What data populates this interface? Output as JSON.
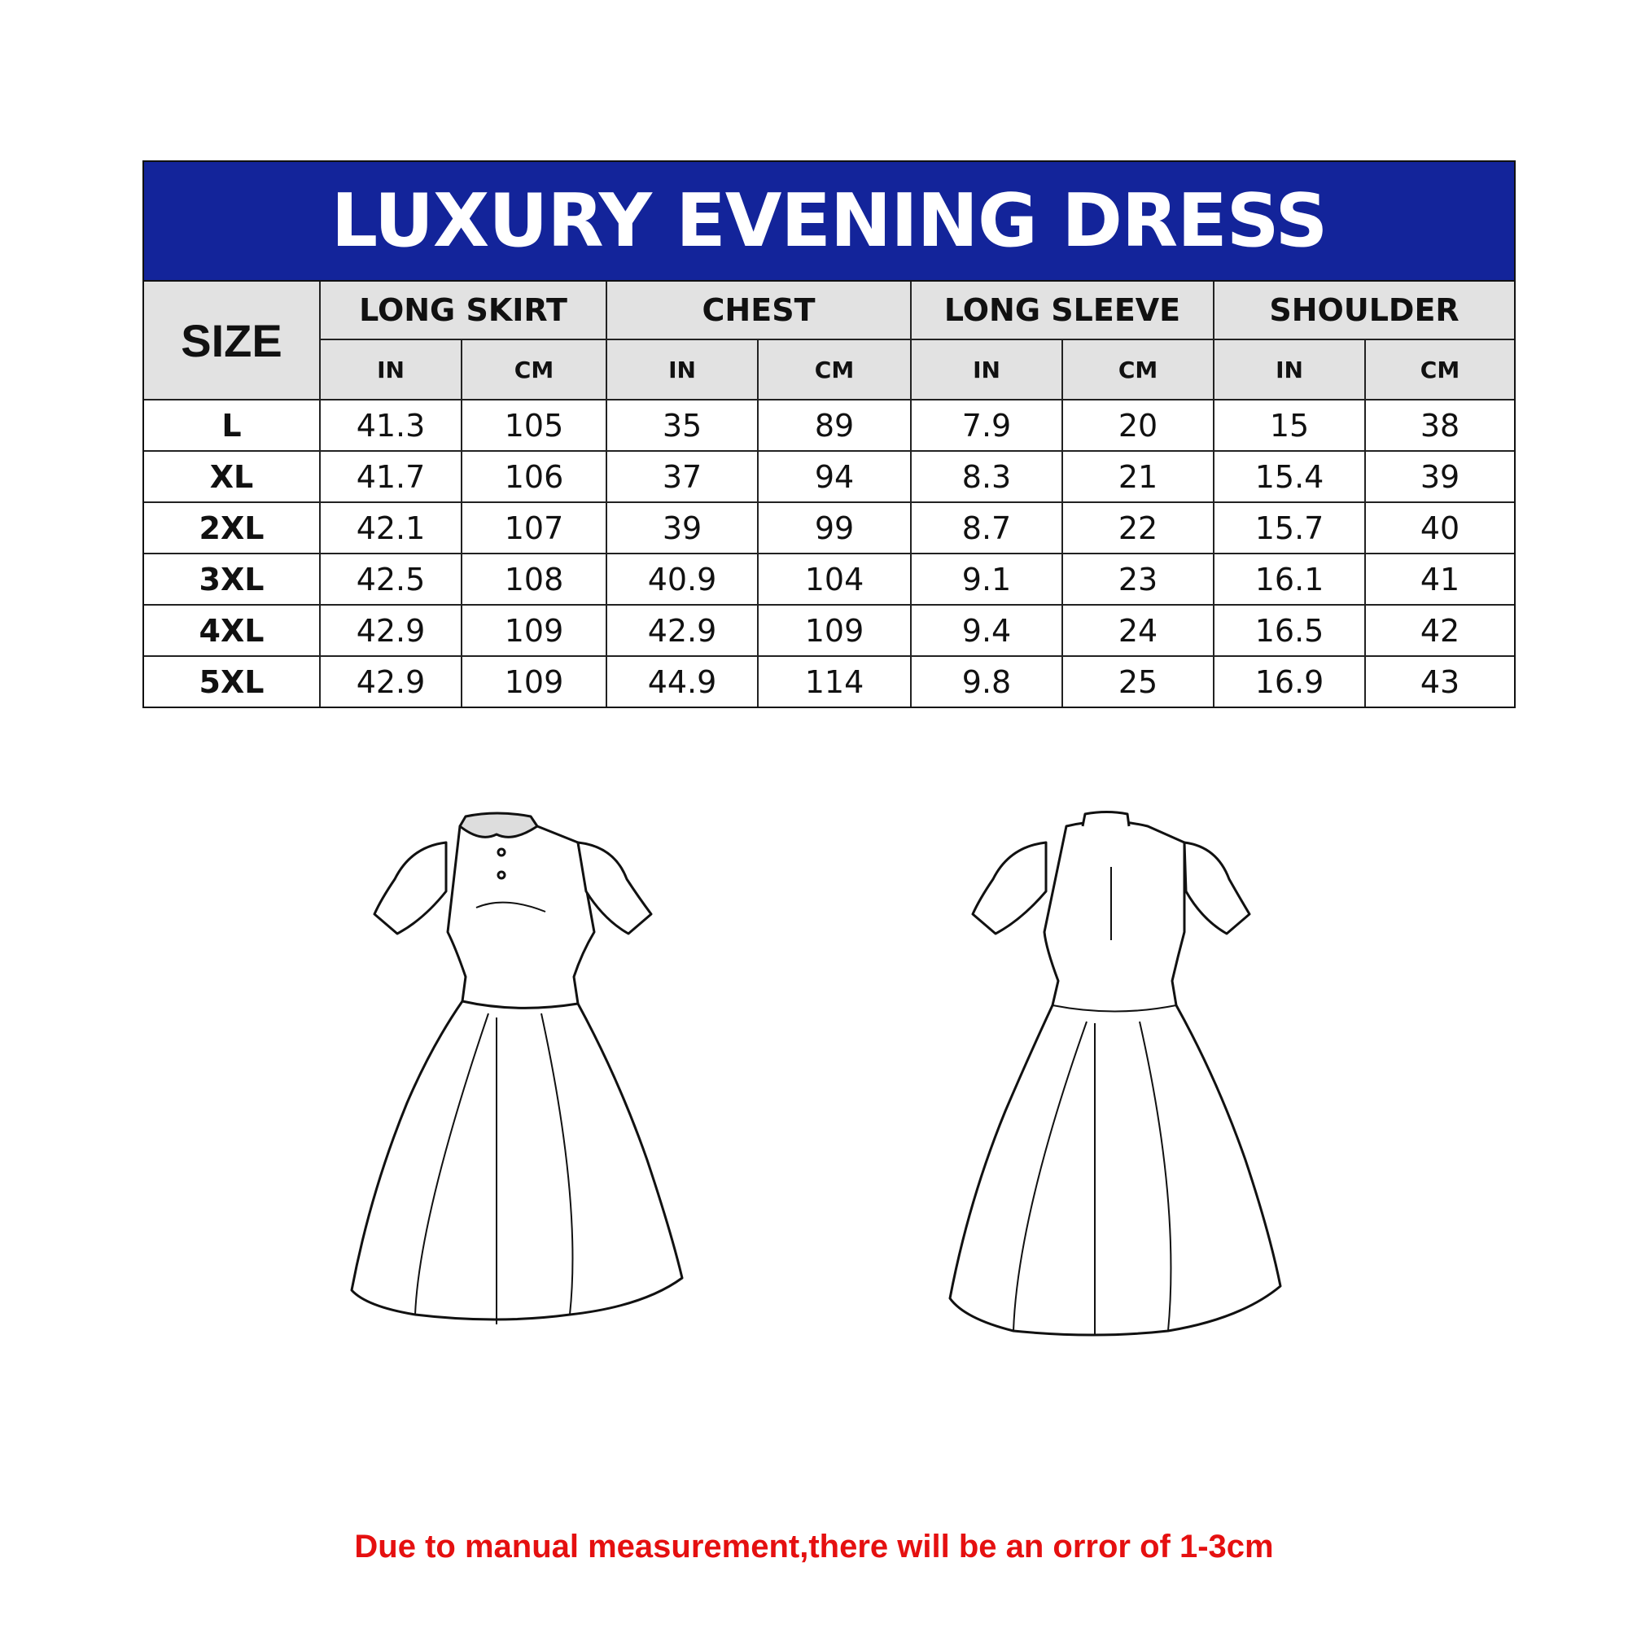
{
  "title": "LUXURY EVENING DRESS",
  "table": {
    "size_header": "SIZE",
    "groups": [
      "LONG SKIRT",
      "CHEST",
      "LONG SLEEVE",
      "SHOULDER"
    ],
    "units": [
      "IN",
      "CM",
      "IN",
      "CM",
      "IN",
      "CM",
      "IN",
      "CM"
    ],
    "rows": [
      {
        "size": "L",
        "values": [
          "41.3",
          "105",
          "35",
          "89",
          "7.9",
          "20",
          "15",
          "38"
        ]
      },
      {
        "size": "XL",
        "values": [
          "41.7",
          "106",
          "37",
          "94",
          "8.3",
          "21",
          "15.4",
          "39"
        ]
      },
      {
        "size": "2XL",
        "values": [
          "42.1",
          "107",
          "39",
          "99",
          "8.7",
          "22",
          "15.7",
          "40"
        ]
      },
      {
        "size": "3XL",
        "values": [
          "42.5",
          "108",
          "40.9",
          "104",
          "9.1",
          "23",
          "16.1",
          "41"
        ]
      },
      {
        "size": "4XL",
        "values": [
          "42.9",
          "109",
          "42.9",
          "109",
          "9.4",
          "24",
          "16.5",
          "42"
        ]
      },
      {
        "size": "5XL",
        "values": [
          "42.9",
          "109",
          "44.9",
          "114",
          "9.8",
          "25",
          "16.9",
          "43"
        ]
      }
    ]
  },
  "illustrations": [
    "dress-front",
    "dress-back"
  ],
  "colors": {
    "header_band": "#13249a",
    "header_cells": "#e2e2e2",
    "note": "#e51010"
  },
  "note": "Due to manual measurement,there will be an orror of 1-3cm"
}
